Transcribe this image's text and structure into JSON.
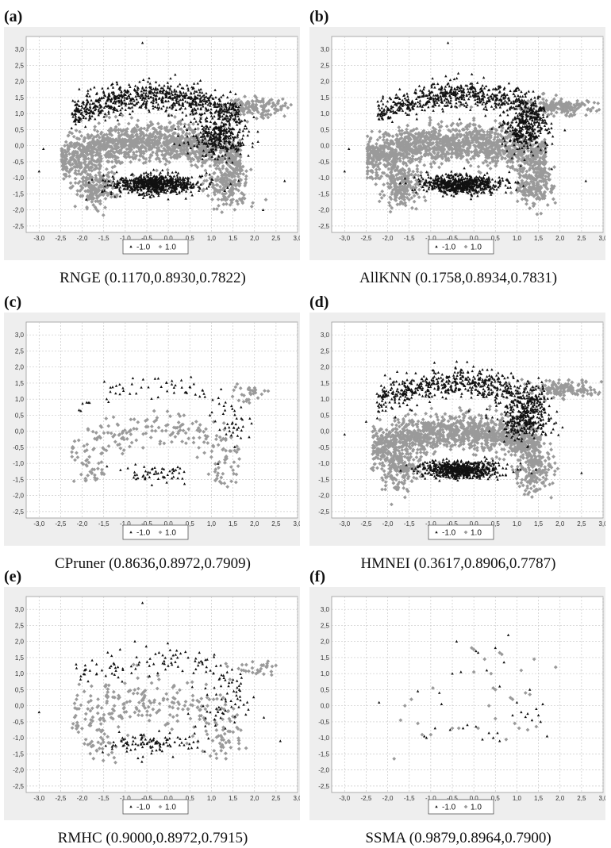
{
  "colors": {
    "neg": "#111111",
    "pos": "#9a9a9a",
    "grid": "#c8c8c8",
    "bg": "#eeeeee",
    "area": "#ffffff"
  },
  "chart_data": [
    {
      "label": "(a)",
      "caption": "RNGE (0.1170,0.8930,0.7822)",
      "type": "scatter",
      "xlim": [
        -3.3,
        3.0
      ],
      "ylim": [
        -2.7,
        3.4
      ],
      "xticks": [
        "-3,0",
        "-2,5",
        "-2,0",
        "-1,5",
        "-1,0",
        "-0,5",
        "0,0",
        "0,5",
        "1,0",
        "1,5",
        "2,0",
        "2,5",
        "3,0"
      ],
      "yticks": [
        "3,0",
        "2,5",
        "2,0",
        "1,5",
        "1,0",
        "0,5",
        "0,0",
        "-0,5",
        "-1,0",
        "-1,5",
        "-2,0",
        "-2,5"
      ],
      "grid": true,
      "legend_position": "bottom",
      "series": [
        {
          "name": "-1.0",
          "marker": "triangle",
          "approx_count": 1900,
          "clusters": [
            {
              "cx": -0.3,
              "cy": -1.2,
              "sx": 0.85,
              "sy": 0.22,
              "n": 700,
              "shape": "ellipse"
            },
            {
              "cx": -0.3,
              "cy": 1.25,
              "sx": 1.5,
              "sy": 0.4,
              "n": 750,
              "shape": "arch"
            },
            {
              "cx": 1.2,
              "cy": 0.3,
              "sx": 0.5,
              "sy": 0.5,
              "n": 350,
              "shape": "ellipse"
            }
          ],
          "outliers": [
            [
              -0.6,
              3.2
            ],
            [
              -3.0,
              -0.8
            ],
            [
              -2.9,
              -0.1
            ],
            [
              2.2,
              -2.0
            ],
            [
              2.7,
              -1.1
            ]
          ]
        },
        {
          "name": "1.0",
          "marker": "diamond",
          "approx_count": 2200,
          "clusters": [
            {
              "cx": -0.4,
              "cy": -0.1,
              "sx": 1.6,
              "sy": 0.5,
              "n": 1300,
              "shape": "arch-lower"
            },
            {
              "cx": -1.7,
              "cy": -1.2,
              "sx": 0.4,
              "sy": 0.5,
              "n": 200,
              "shape": "ellipse"
            },
            {
              "cx": 1.4,
              "cy": -1.2,
              "sx": 0.4,
              "sy": 0.5,
              "n": 200,
              "shape": "ellipse"
            },
            {
              "cx": 2.0,
              "cy": 1.2,
              "sx": 0.7,
              "sy": 0.2,
              "n": 150,
              "shape": "ellipse"
            }
          ],
          "outliers": []
        }
      ]
    },
    {
      "label": "(b)",
      "caption": "AllKNN (0.1758,0.8934,0.7831)",
      "type": "scatter",
      "xlim": [
        -3.3,
        3.0
      ],
      "ylim": [
        -2.7,
        3.4
      ],
      "xticks": [
        "-3,0",
        "-2,5",
        "-2,0",
        "-1,5",
        "-1,0",
        "-0,5",
        "0,0",
        "0,5",
        "1,0",
        "1,5",
        "2,0",
        "2,5",
        "3,0"
      ],
      "yticks": [
        "3,0",
        "2,5",
        "2,0",
        "1,5",
        "1,0",
        "0,5",
        "0,0",
        "-0,5",
        "-1,0",
        "-1,5",
        "-2,0",
        "-2,5"
      ],
      "grid": true,
      "legend_position": "bottom",
      "series": [
        {
          "name": "-1.0",
          "marker": "triangle",
          "approx_count": 1700,
          "clusters": [
            {
              "cx": -0.3,
              "cy": -1.2,
              "sx": 0.8,
              "sy": 0.2,
              "n": 650,
              "shape": "ellipse"
            },
            {
              "cx": -0.3,
              "cy": 1.3,
              "sx": 1.5,
              "sy": 0.35,
              "n": 650,
              "shape": "arch"
            },
            {
              "cx": 1.2,
              "cy": 0.5,
              "sx": 0.45,
              "sy": 0.45,
              "n": 300,
              "shape": "ellipse"
            }
          ],
          "outliers": [
            [
              -0.6,
              3.2
            ],
            [
              -3.0,
              -0.8
            ],
            [
              -2.9,
              -0.1
            ],
            [
              2.6,
              -1.1
            ]
          ]
        },
        {
          "name": "1.0",
          "marker": "diamond",
          "approx_count": 2300,
          "clusters": [
            {
              "cx": -0.4,
              "cy": -0.1,
              "sx": 1.6,
              "sy": 0.5,
              "n": 1350,
              "shape": "arch-lower"
            },
            {
              "cx": -1.7,
              "cy": -1.2,
              "sx": 0.4,
              "sy": 0.5,
              "n": 220,
              "shape": "ellipse"
            },
            {
              "cx": 1.4,
              "cy": -1.2,
              "sx": 0.4,
              "sy": 0.5,
              "n": 220,
              "shape": "ellipse"
            },
            {
              "cx": 2.0,
              "cy": 1.2,
              "sx": 0.7,
              "sy": 0.2,
              "n": 170,
              "shape": "ellipse"
            }
          ],
          "outliers": []
        }
      ]
    },
    {
      "label": "(c)",
      "caption": "CPruner (0.8636,0.8972,0.7909)",
      "type": "scatter",
      "xlim": [
        -3.3,
        3.0
      ],
      "ylim": [
        -2.7,
        3.4
      ],
      "xticks": [
        "-3,0",
        "-2,5",
        "-2,0",
        "-1,5",
        "-1,0",
        "-0,5",
        "0,0",
        "0,5",
        "1,0",
        "1,5",
        "2,0",
        "2,5",
        "3,0"
      ],
      "yticks": [
        "3,0",
        "2,5",
        "2,0",
        "1,5",
        "1,0",
        "0,5",
        "0,0",
        "-0,5",
        "-1,0",
        "-1,5",
        "-2,0",
        "-2,5"
      ],
      "grid": true,
      "legend_position": "bottom",
      "series": [
        {
          "name": "-1.0",
          "marker": "triangle",
          "approx_count": 150,
          "clusters": [
            {
              "cx": -0.3,
              "cy": -1.3,
              "sx": 0.7,
              "sy": 0.2,
              "n": 55,
              "shape": "ellipse"
            },
            {
              "cx": -0.3,
              "cy": 1.1,
              "sx": 1.4,
              "sy": 0.3,
              "n": 60,
              "shape": "arch"
            },
            {
              "cx": 1.5,
              "cy": 0.2,
              "sx": 0.4,
              "sy": 0.45,
              "n": 35,
              "shape": "ellipse"
            }
          ],
          "outliers": []
        },
        {
          "name": "1.0",
          "marker": "diamond",
          "approx_count": 260,
          "clusters": [
            {
              "cx": -0.3,
              "cy": -0.2,
              "sx": 1.5,
              "sy": 0.5,
              "n": 170,
              "shape": "arch-lower"
            },
            {
              "cx": -1.8,
              "cy": -1.2,
              "sx": 0.3,
              "sy": 0.4,
              "n": 30,
              "shape": "ellipse"
            },
            {
              "cx": 1.3,
              "cy": -1.2,
              "sx": 0.3,
              "sy": 0.4,
              "n": 30,
              "shape": "ellipse"
            },
            {
              "cx": 1.9,
              "cy": 1.2,
              "sx": 0.4,
              "sy": 0.2,
              "n": 30,
              "shape": "ellipse"
            }
          ],
          "outliers": []
        }
      ]
    },
    {
      "label": "(d)",
      "caption": "HMNEI (0.3617,0.8906,0.7787)",
      "type": "scatter",
      "xlim": [
        -3.3,
        3.0
      ],
      "ylim": [
        -2.7,
        3.4
      ],
      "xticks": [
        "-3,0",
        "-2,5",
        "-2,0",
        "-1,5",
        "-1,0",
        "-0,5",
        "0,0",
        "0,5",
        "1,0",
        "1,5",
        "2,0",
        "2,5",
        "3,0"
      ],
      "yticks": [
        "3,0",
        "2,5",
        "2,0",
        "1,5",
        "1,0",
        "0,5",
        "0,0",
        "-0,5",
        "-1,0",
        "-1,5",
        "-2,0",
        "-2,5"
      ],
      "grid": true,
      "legend_position": "bottom",
      "series": [
        {
          "name": "-1.0",
          "marker": "triangle",
          "approx_count": 1500,
          "clusters": [
            {
              "cx": -0.3,
              "cy": -1.2,
              "sx": 0.75,
              "sy": 0.2,
              "n": 600,
              "shape": "ellipse"
            },
            {
              "cx": -0.3,
              "cy": 1.2,
              "sx": 1.5,
              "sy": 0.4,
              "n": 600,
              "shape": "arch"
            },
            {
              "cx": 1.2,
              "cy": 0.4,
              "sx": 0.5,
              "sy": 0.5,
              "n": 300,
              "shape": "ellipse"
            }
          ],
          "outliers": [
            [
              -3.0,
              -0.1
            ],
            [
              -2.5,
              0.3
            ],
            [
              2.5,
              -1.3
            ]
          ]
        },
        {
          "name": "1.0",
          "marker": "diamond",
          "approx_count": 2000,
          "clusters": [
            {
              "cx": -0.4,
              "cy": -0.2,
              "sx": 1.5,
              "sy": 0.5,
              "n": 1200,
              "shape": "arch-lower"
            },
            {
              "cx": -1.7,
              "cy": -1.2,
              "sx": 0.4,
              "sy": 0.5,
              "n": 180,
              "shape": "ellipse"
            },
            {
              "cx": 1.4,
              "cy": -1.2,
              "sx": 0.4,
              "sy": 0.5,
              "n": 180,
              "shape": "ellipse"
            },
            {
              "cx": 2.0,
              "cy": 1.3,
              "sx": 0.7,
              "sy": 0.2,
              "n": 160,
              "shape": "ellipse"
            }
          ],
          "outliers": []
        }
      ]
    },
    {
      "label": "(e)",
      "caption": "RMHC (0.9000,0.8972,0.7915)",
      "type": "scatter",
      "xlim": [
        -3.3,
        3.0
      ],
      "ylim": [
        -2.7,
        3.4
      ],
      "xticks": [
        "-3,0",
        "-2,5",
        "-2,0",
        "-1,5",
        "-1,0",
        "-0,5",
        "0,0",
        "0,5",
        "1,0",
        "1,5",
        "2,0",
        "2,5",
        "3,0"
      ],
      "yticks": [
        "3,0",
        "2,5",
        "2,0",
        "1,5",
        "1,0",
        "0,5",
        "0,0",
        "-0,5",
        "-1,0",
        "-1,5",
        "-2,0",
        "-2,5"
      ],
      "grid": true,
      "legend_position": "bottom",
      "series": [
        {
          "name": "-1.0",
          "marker": "triangle",
          "approx_count": 260,
          "clusters": [
            {
              "cx": -0.3,
              "cy": -1.2,
              "sx": 0.9,
              "sy": 0.25,
              "n": 100,
              "shape": "ellipse"
            },
            {
              "cx": -0.2,
              "cy": 1.1,
              "sx": 1.5,
              "sy": 0.45,
              "n": 110,
              "shape": "arch"
            },
            {
              "cx": 1.3,
              "cy": 0.0,
              "sx": 0.5,
              "sy": 0.6,
              "n": 50,
              "shape": "ellipse"
            }
          ],
          "outliers": [
            [
              -0.6,
              3.2
            ],
            [
              -3.0,
              -0.2
            ],
            [
              2.6,
              -1.1
            ]
          ]
        },
        {
          "name": "1.0",
          "marker": "diamond",
          "approx_count": 330,
          "clusters": [
            {
              "cx": -0.3,
              "cy": -0.1,
              "sx": 1.5,
              "sy": 0.6,
              "n": 230,
              "shape": "arch-lower"
            },
            {
              "cx": -1.6,
              "cy": -1.2,
              "sx": 0.4,
              "sy": 0.4,
              "n": 35,
              "shape": "ellipse"
            },
            {
              "cx": 1.3,
              "cy": -1.1,
              "sx": 0.4,
              "sy": 0.4,
              "n": 35,
              "shape": "ellipse"
            },
            {
              "cx": 2.0,
              "cy": 1.2,
              "sx": 0.6,
              "sy": 0.2,
              "n": 30,
              "shape": "ellipse"
            }
          ],
          "outliers": []
        }
      ]
    },
    {
      "label": "(f)",
      "caption": "SSMA (0.9879,0.8964,0.7900)",
      "type": "scatter",
      "xlim": [
        -3.3,
        3.0
      ],
      "ylim": [
        -2.7,
        3.4
      ],
      "xticks": [
        "-3,0",
        "-2,5",
        "-2,0",
        "-1,5",
        "-1,0",
        "-0,5",
        "0,0",
        "0,5",
        "1,0",
        "1,5",
        "2,0",
        "2,5",
        "3,0"
      ],
      "yticks": [
        "3,0",
        "2,5",
        "2,0",
        "1,5",
        "1,0",
        "0,5",
        "0,0",
        "-0,5",
        "-1,0",
        "-1,5",
        "-2,0",
        "-2,5"
      ],
      "grid": true,
      "legend_position": "bottom",
      "series": [
        {
          "name": "-1.0",
          "marker": "triangle",
          "approx_count": 38,
          "points": [
            [
              -2.2,
              0.1
            ],
            [
              -1.3,
              0.45
            ],
            [
              -1.1,
              -1.0
            ],
            [
              -0.8,
              0.4
            ],
            [
              -0.75,
              0.05
            ],
            [
              -0.9,
              -0.7
            ],
            [
              -0.55,
              -0.75
            ],
            [
              -0.4,
              2.0
            ],
            [
              -0.15,
              -0.6
            ],
            [
              -0.3,
              1.05
            ],
            [
              0.05,
              1.7
            ],
            [
              0.05,
              -0.65
            ],
            [
              0.1,
              1.65
            ],
            [
              0.3,
              1.1
            ],
            [
              0.35,
              -0.85
            ],
            [
              0.5,
              1.8
            ],
            [
              0.45,
              -1.0
            ],
            [
              0.55,
              -0.85
            ],
            [
              0.6,
              0.6
            ],
            [
              0.8,
              2.2
            ],
            [
              0.7,
              1.35
            ],
            [
              1.0,
              0.1
            ],
            [
              1.1,
              -0.2
            ],
            [
              1.2,
              -0.35
            ],
            [
              1.3,
              0.5
            ],
            [
              1.35,
              -0.45
            ],
            [
              1.45,
              -0.1
            ],
            [
              1.5,
              -0.3
            ],
            [
              1.6,
              0.05
            ],
            [
              1.7,
              -0.95
            ],
            [
              -0.5,
              1.0
            ],
            [
              0.2,
              -1.05
            ],
            [
              1.25,
              -0.25
            ],
            [
              0.9,
              -0.3
            ],
            [
              -1.15,
              -0.95
            ],
            [
              0.6,
              -1.1
            ],
            [
              -0.25,
              -0.7
            ],
            [
              1.55,
              -0.5
            ]
          ]
        },
        {
          "name": "1.0",
          "marker": "diamond",
          "approx_count": 34,
          "points": [
            [
              -1.85,
              -1.65
            ],
            [
              -1.7,
              -0.45
            ],
            [
              -1.6,
              0.0
            ],
            [
              -1.45,
              0.2
            ],
            [
              -1.3,
              -0.55
            ],
            [
              -1.2,
              -0.9
            ],
            [
              -1.0,
              -0.9
            ],
            [
              -0.5,
              -0.7
            ],
            [
              -0.35,
              -0.7
            ],
            [
              -0.05,
              1.8
            ],
            [
              0.0,
              1.75
            ],
            [
              0.0,
              1.05
            ],
            [
              0.1,
              -0.7
            ],
            [
              0.25,
              1.45
            ],
            [
              0.4,
              1.0
            ],
            [
              0.45,
              0.55
            ],
            [
              0.5,
              0.5
            ],
            [
              0.5,
              -0.4
            ],
            [
              0.6,
              1.65
            ],
            [
              0.65,
              1.6
            ],
            [
              0.75,
              -1.05
            ],
            [
              0.85,
              0.25
            ],
            [
              0.9,
              0.2
            ],
            [
              0.95,
              -0.55
            ],
            [
              1.05,
              -0.7
            ],
            [
              1.1,
              1.1
            ],
            [
              1.2,
              0.4
            ],
            [
              1.3,
              0.35
            ],
            [
              1.4,
              1.45
            ],
            [
              1.45,
              -0.65
            ],
            [
              1.9,
              1.2
            ],
            [
              -0.95,
              0.55
            ],
            [
              0.35,
              0.0
            ],
            [
              1.25,
              -0.75
            ]
          ]
        }
      ]
    }
  ]
}
